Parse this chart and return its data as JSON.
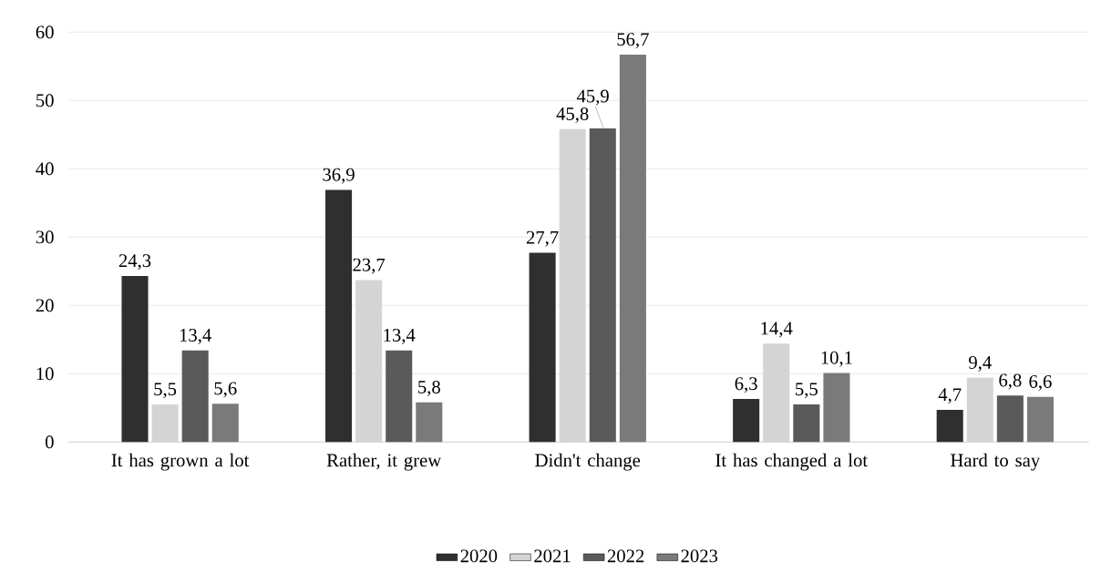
{
  "chart_data": {
    "type": "bar",
    "categories": [
      "It has grown a lot",
      "Rather, it grew",
      "Didn't change",
      "It has changed a lot",
      "Hard to say"
    ],
    "series": [
      {
        "name": "2020",
        "color": "#2f2f2f",
        "values": [
          24.3,
          36.9,
          27.7,
          6.3,
          4.7
        ],
        "value_labels": [
          "24,3",
          "36,9",
          "27,7",
          "6,3",
          "4,7"
        ]
      },
      {
        "name": "2021",
        "color": "#d4d4d4",
        "values": [
          5.5,
          23.7,
          45.8,
          14.4,
          9.4
        ],
        "value_labels": [
          "5,5",
          "23,7",
          "45,8",
          "14,4",
          "9,4"
        ]
      },
      {
        "name": "2022",
        "color": "#5a5a5a",
        "values": [
          13.4,
          13.4,
          45.9,
          5.5,
          6.8
        ],
        "value_labels": [
          "13,4",
          "13,4",
          "45,9",
          "5,5",
          "6,8"
        ]
      },
      {
        "name": "2023",
        "color": "#7a7a7a",
        "values": [
          5.6,
          5.8,
          56.7,
          10.1,
          6.6
        ],
        "value_labels": [
          "5,6",
          "5,8",
          "56,7",
          "10,1",
          "6,6"
        ]
      }
    ],
    "ylim": [
      0,
      60
    ],
    "yticks": [
      0,
      10,
      20,
      30,
      40,
      50,
      60
    ],
    "grid": "y",
    "legend": "bottom"
  }
}
